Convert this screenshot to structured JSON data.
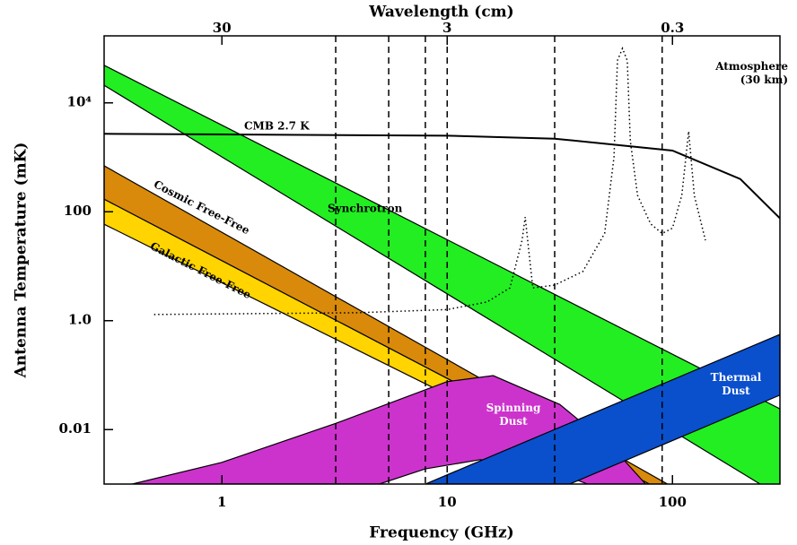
{
  "chart_data": {
    "type": "bands",
    "x_label": "Frequency (GHz)",
    "y_label": "Antenna Temperature (mK)",
    "x2_label": "Wavelength (cm)",
    "xlog": true,
    "ylog": true,
    "xlim": [
      0.3,
      300
    ],
    "ylim": [
      0.001,
      170000
    ],
    "xticks": [
      1,
      10,
      100
    ],
    "yticks": [
      {
        "value": 10000,
        "label": "10⁴"
      },
      100,
      {
        "value": 1,
        "label": "1.0"
      },
      0.01
    ],
    "x2lim": [
      100,
      0.1
    ],
    "x2ticks": [
      30,
      3,
      0.3
    ],
    "bands": [
      {
        "name": "Synchrotron",
        "color": "#22ee22",
        "upper": {
          "x": [
            0.3,
            300
          ],
          "values": [
            49000,
            0.024
          ]
        },
        "lower": {
          "x": [
            0.3,
            300
          ],
          "values": [
            21000,
            0.0006
          ]
        }
      },
      {
        "name": "Cosmic Free-Free",
        "color": "#d98a0a",
        "upper": {
          "x": [
            0.3,
            95
          ],
          "values": [
            700,
            0.001
          ]
        },
        "lower": {
          "x": [
            0.3,
            79
          ],
          "values": [
            170,
            0.001
          ]
        }
      },
      {
        "name": "Galactic Free-Free",
        "color": "#ffd400",
        "upper": {
          "x": [
            0.3,
            79
          ],
          "values": [
            170,
            0.001
          ]
        },
        "lower": {
          "x": [
            0.3,
            63
          ],
          "values": [
            59,
            0.001
          ]
        }
      },
      {
        "name": "Spinning Dust",
        "color": "#cc33cc",
        "upper": {
          "x": [
            0.4,
            1,
            3.2,
            10,
            16,
            31.6,
            55,
            76
          ],
          "values": [
            0.001,
            0.0025,
            0.013,
            0.076,
            0.098,
            0.029,
            0.0044,
            0.001
          ]
        },
        "lower": {
          "x": [
            5,
            8,
            14,
            26,
            42
          ],
          "values": [
            0.001,
            0.0019,
            0.0028,
            0.0021,
            0.001
          ]
        }
      },
      {
        "name": "Thermal Dust",
        "color": "#0a4fcc",
        "upper": {
          "x": [
            8,
            300
          ],
          "values": [
            0.001,
            0.56
          ]
        },
        "lower": {
          "x": [
            35,
            300
          ],
          "values": [
            0.001,
            0.043
          ]
        }
      }
    ],
    "lines": [
      {
        "name": "CMB 2.7 K",
        "color": "#000000",
        "dotted": false,
        "x": [
          0.3,
          10,
          30,
          100,
          200,
          300
        ],
        "values": [
          2700,
          2500,
          2200,
          1330,
          400,
          76
        ]
      },
      {
        "name": "Atmosphere (30 km)",
        "color": "#000000",
        "dotted": true,
        "x": [
          0.5,
          4,
          10,
          15,
          19,
          21.5,
          22.2,
          23,
          24,
          30,
          40,
          50,
          55,
          57,
          60,
          63,
          65,
          70,
          80,
          90,
          100,
          110,
          118,
          125,
          140
        ],
        "values": [
          1.3,
          1.4,
          1.6,
          2.2,
          4,
          30,
          80,
          20,
          4,
          4.5,
          8,
          40,
          1000,
          60000,
          100000,
          60000,
          2000,
          200,
          60,
          40,
          50,
          200,
          3000,
          200,
          30
        ]
      }
    ],
    "vlines": [
      3.2,
      5.5,
      8,
      10,
      30,
      90
    ]
  }
}
